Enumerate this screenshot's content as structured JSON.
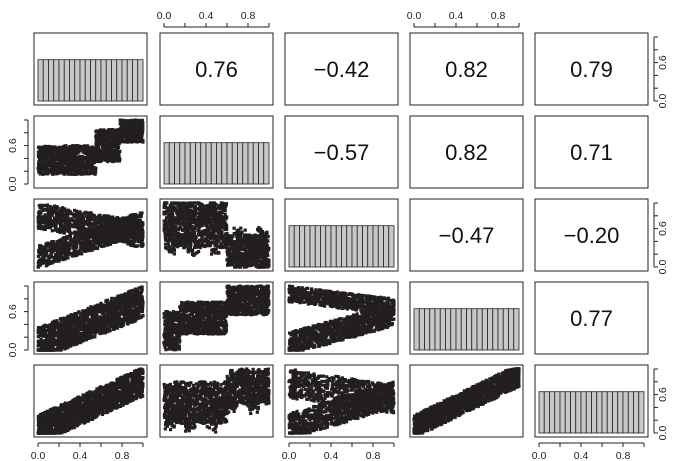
{
  "chart_data": {
    "type": "scatter",
    "layout": "pairs-matrix",
    "size": 5,
    "axis_range": [
      0,
      1
    ],
    "tick_labels": [
      "0.0",
      "0.4",
      "0.8"
    ],
    "y_tick_labels": [
      "0.0",
      "0.6"
    ],
    "diagonal": {
      "type": "bar",
      "bins": 20,
      "density": 1.0,
      "ylim": [
        0,
        1.55
      ],
      "fill": "#c8c8c8"
    },
    "correlations": [
      {
        "row": 1,
        "col": 2,
        "value": "0.76"
      },
      {
        "row": 1,
        "col": 3,
        "value": "−0.42"
      },
      {
        "row": 1,
        "col": 4,
        "value": "0.82"
      },
      {
        "row": 1,
        "col": 5,
        "value": "0.79"
      },
      {
        "row": 2,
        "col": 3,
        "value": "−0.57"
      },
      {
        "row": 2,
        "col": 4,
        "value": "0.82"
      },
      {
        "row": 2,
        "col": 5,
        "value": "0.71"
      },
      {
        "row": 3,
        "col": 4,
        "value": "−0.47"
      },
      {
        "row": 3,
        "col": 5,
        "value": "−0.20"
      },
      {
        "row": 4,
        "col": 5,
        "value": "0.77"
      }
    ],
    "point_color": "#231f20",
    "grid": false,
    "legend": "none"
  }
}
